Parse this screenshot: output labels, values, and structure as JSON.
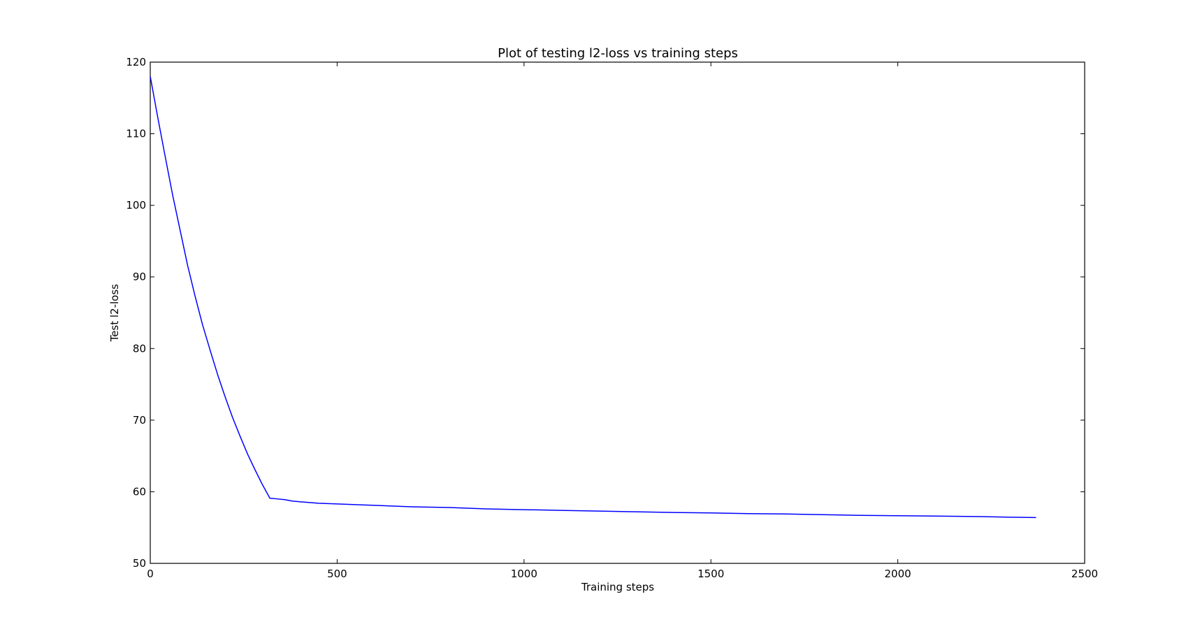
{
  "chart_data": {
    "type": "line",
    "title": "Plot of testing l2-loss vs training steps",
    "xlabel": "Training steps",
    "ylabel": "Test l2-loss",
    "xlim": [
      0,
      2500
    ],
    "ylim": [
      50,
      120
    ],
    "xticks": [
      0,
      500,
      1000,
      1500,
      2000,
      2500
    ],
    "yticks": [
      50,
      60,
      70,
      80,
      90,
      100,
      110,
      120
    ],
    "grid": false,
    "series": [
      {
        "color": "#0000ff",
        "x": [
          0,
          20,
          40,
          60,
          80,
          100,
          120,
          140,
          160,
          180,
          200,
          220,
          240,
          260,
          280,
          300,
          320,
          340,
          360,
          380,
          400,
          450,
          500,
          600,
          700,
          800,
          900,
          1000,
          1100,
          1200,
          1300,
          1400,
          1500,
          1600,
          1700,
          1800,
          1900,
          2000,
          2100,
          2200,
          2300,
          2370
        ],
        "y": [
          118,
          112.3,
          106.8,
          101.4,
          96.5,
          91.6,
          87.3,
          83.3,
          79.8,
          76.4,
          73.3,
          70.4,
          67.8,
          65.3,
          63.1,
          61.0,
          59.1,
          59.0,
          58.9,
          58.7,
          58.6,
          58.4,
          58.3,
          58.1,
          57.9,
          57.8,
          57.6,
          57.5,
          57.4,
          57.3,
          57.2,
          57.1,
          57.05,
          56.95,
          56.9,
          56.8,
          56.7,
          56.65,
          56.6,
          56.55,
          56.45,
          56.4
        ]
      }
    ]
  }
}
